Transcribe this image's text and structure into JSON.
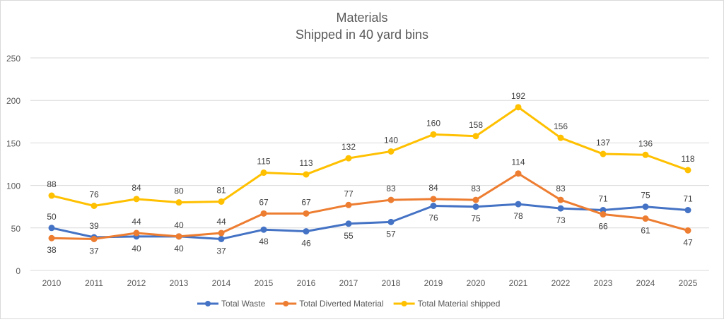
{
  "chart_data": {
    "type": "line",
    "title": "Materials",
    "subtitle": "Shipped in 40 yard bins",
    "xlabel": "",
    "ylabel": "",
    "ylim": [
      0,
      250
    ],
    "yticks": [
      0,
      50,
      100,
      150,
      200,
      250
    ],
    "grid": true,
    "legend_position": "bottom",
    "categories": [
      "2010",
      "2011",
      "2012",
      "2013",
      "2014",
      "2015",
      "2016",
      "2017",
      "2018",
      "2019",
      "2020",
      "2021",
      "2022",
      "2023",
      "2024",
      "2025"
    ],
    "series": [
      {
        "name": "Total Waste",
        "color": "#4472c4",
        "values": [
          50,
          39,
          40,
          40,
          37,
          48,
          46,
          55,
          57,
          76,
          75,
          78,
          73,
          71,
          75,
          71
        ]
      },
      {
        "name": "Total Diverted Material",
        "color": "#ed7d31",
        "values": [
          38,
          37,
          44,
          40,
          44,
          67,
          67,
          77,
          83,
          84,
          83,
          114,
          83,
          66,
          61,
          47
        ]
      },
      {
        "name": "Total Material shipped",
        "color": "#ffc000",
        "values": [
          88,
          76,
          84,
          80,
          81,
          115,
          113,
          132,
          140,
          160,
          158,
          192,
          156,
          137,
          136,
          118
        ]
      }
    ]
  }
}
